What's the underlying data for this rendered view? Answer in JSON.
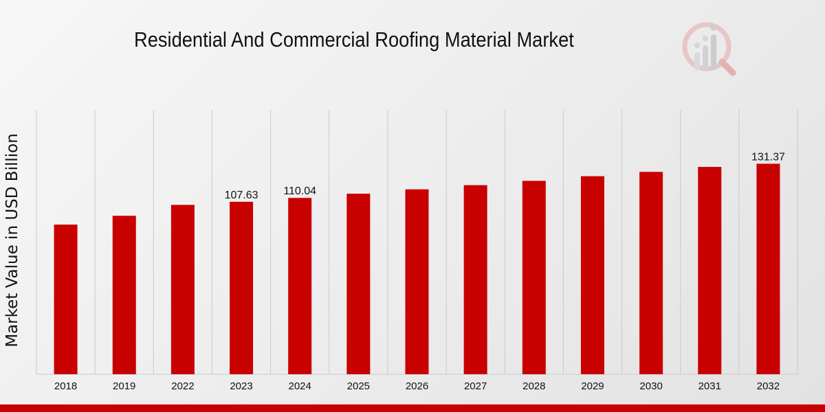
{
  "colors": {
    "bar": "#c80000",
    "bottom_bar": "#c80000",
    "grid": "#c9c9c9",
    "text": "#111111"
  },
  "logo": {
    "icon": "magnifier-bar-chart-icon"
  },
  "chart_data": {
    "type": "bar",
    "title": "Residential And Commercial Roofing Material Market",
    "xlabel": "",
    "ylabel": "Market Value in USD Billion",
    "ylim": [
      0,
      165
    ],
    "grid": "vertical",
    "categories": [
      "2018",
      "2019",
      "2022",
      "2023",
      "2024",
      "2025",
      "2026",
      "2027",
      "2028",
      "2029",
      "2030",
      "2031",
      "2032"
    ],
    "values": [
      93.4,
      98.9,
      105.7,
      107.63,
      110.04,
      112.7,
      115.4,
      118.0,
      120.7,
      123.6,
      126.3,
      129.4,
      131.37
    ],
    "data_labels": [
      {
        "category": "2023",
        "text": "107.63"
      },
      {
        "category": "2024",
        "text": "110.04"
      },
      {
        "category": "2032",
        "text": "131.37"
      }
    ]
  }
}
